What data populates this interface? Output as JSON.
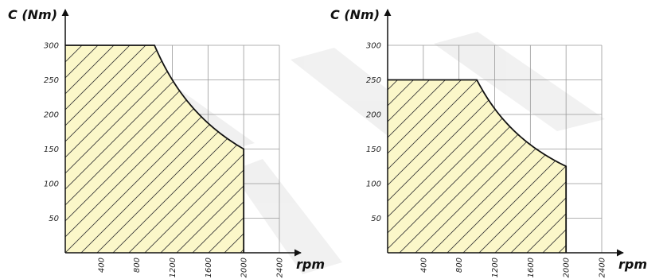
{
  "chart_data": [
    {
      "type": "area",
      "ylabel": "C (Nm)",
      "xlabel": "rpm",
      "xlim": [
        0,
        2400
      ],
      "ylim": [
        0,
        300
      ],
      "x_ticks": [
        400,
        800,
        1200,
        1600,
        2000,
        2400
      ],
      "y_ticks": [
        50,
        100,
        150,
        200,
        250,
        300
      ],
      "grid": true,
      "fill_color": "#fbf7c9",
      "hatch": "diagonal",
      "points": [
        {
          "x": 0,
          "y": 300
        },
        {
          "x": 1000,
          "y": 300
        },
        {
          "x": 2000,
          "y": 150
        }
      ],
      "constant_torque_until": 1000,
      "constant_power_from": 1000,
      "end_x": 2000
    },
    {
      "type": "area",
      "ylabel": "C (Nm)",
      "xlabel": "rpm",
      "xlim": [
        0,
        2400
      ],
      "ylim": [
        0,
        300
      ],
      "x_ticks": [
        400,
        800,
        1200,
        1600,
        2000,
        2400
      ],
      "y_ticks": [
        50,
        100,
        150,
        200,
        250,
        300
      ],
      "grid": true,
      "fill_color": "#fbf7c9",
      "hatch": "diagonal",
      "points": [
        {
          "x": 0,
          "y": 250
        },
        {
          "x": 1000,
          "y": 250
        },
        {
          "x": 2000,
          "y": 125
        }
      ],
      "constant_torque_until": 1000,
      "constant_power_from": 1000,
      "end_x": 2000
    }
  ]
}
